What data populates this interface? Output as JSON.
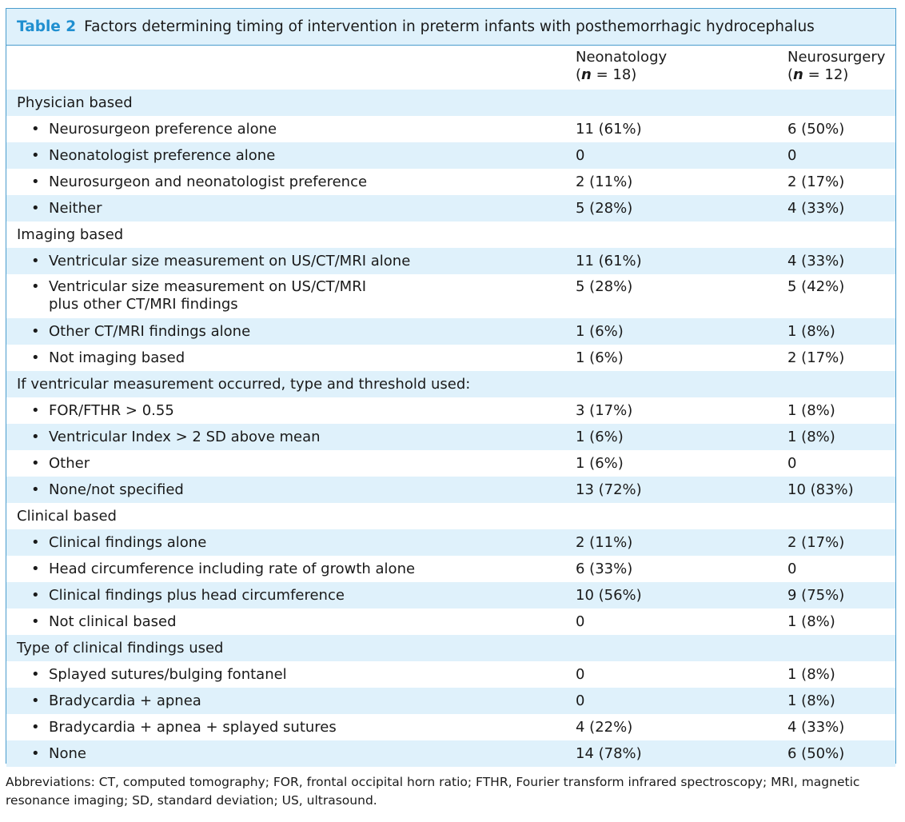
{
  "table": {
    "label": "Table 2",
    "title": "Factors determining timing of intervention in preterm infants with posthemorrhagic hydrocephalus",
    "columns": [
      {
        "name": "Neonatology",
        "n_symbol": "n",
        "n_value": "18"
      },
      {
        "name": "Neurosurgery",
        "n_symbol": "n",
        "n_value": "12"
      }
    ],
    "rows": [
      {
        "type": "section",
        "label": "Physician based",
        "shaded": true
      },
      {
        "type": "item",
        "label": "Neurosurgeon preference alone",
        "v1": "11 (61%)",
        "v2": "6 (50%)",
        "shaded": false
      },
      {
        "type": "item",
        "label": "Neonatologist preference alone",
        "v1": "0",
        "v2": "0",
        "shaded": true
      },
      {
        "type": "item",
        "label": "Neurosurgeon and neonatologist preference",
        "v1": "2 (11%)",
        "v2": "2 (17%)",
        "shaded": false
      },
      {
        "type": "item",
        "label": "Neither",
        "v1": "5 (28%)",
        "v2": "4 (33%)",
        "shaded": true
      },
      {
        "type": "section",
        "label": "Imaging based",
        "shaded": false
      },
      {
        "type": "item",
        "label": "Ventricular size measurement on US/CT/MRI alone",
        "v1": "11 (61%)",
        "v2": "4 (33%)",
        "shaded": true
      },
      {
        "type": "item",
        "label": "Ventricular size measurement on US/CT/MRI",
        "label2": "plus other CT/MRI findings",
        "v1": "5 (28%)",
        "v2": "5 (42%)",
        "shaded": false
      },
      {
        "type": "item",
        "label": "Other CT/MRI findings alone",
        "v1": "1 (6%)",
        "v2": "1 (8%)",
        "shaded": true
      },
      {
        "type": "item",
        "label": "Not imaging based",
        "v1": "1 (6%)",
        "v2": "2 (17%)",
        "shaded": false
      },
      {
        "type": "section",
        "label": "If ventricular measurement occurred, type and threshold used:",
        "shaded": true
      },
      {
        "type": "item",
        "label": "FOR/FTHR > 0.55",
        "v1": "3 (17%)",
        "v2": "1 (8%)",
        "shaded": false
      },
      {
        "type": "item",
        "label": "Ventricular Index > 2 SD above mean",
        "v1": "1 (6%)",
        "v2": "1 (8%)",
        "shaded": true
      },
      {
        "type": "item",
        "label": "Other",
        "v1": "1 (6%)",
        "v2": "0",
        "shaded": false
      },
      {
        "type": "item",
        "label": "None/not specified",
        "v1": "13 (72%)",
        "v2": "10 (83%)",
        "shaded": true
      },
      {
        "type": "section",
        "label": "Clinical based",
        "shaded": false
      },
      {
        "type": "item",
        "label": "Clinical findings alone",
        "v1": "2 (11%)",
        "v2": "2 (17%)",
        "shaded": true
      },
      {
        "type": "item",
        "label": "Head circumference including rate of growth alone",
        "v1": "6 (33%)",
        "v2": "0",
        "shaded": false
      },
      {
        "type": "item",
        "label": "Clinical findings plus head circumference",
        "v1": "10 (56%)",
        "v2": "9 (75%)",
        "shaded": true
      },
      {
        "type": "item",
        "label": "Not clinical based",
        "v1": "0",
        "v2": "1 (8%)",
        "shaded": false
      },
      {
        "type": "section",
        "label": "Type of clinical findings used",
        "shaded": true
      },
      {
        "type": "item",
        "label": "Splayed sutures/bulging fontanel",
        "v1": "0",
        "v2": "1 (8%)",
        "shaded": false
      },
      {
        "type": "item",
        "label": "Bradycardia + apnea",
        "v1": "0",
        "v2": "1 (8%)",
        "shaded": true
      },
      {
        "type": "item",
        "label": "Bradycardia + apnea + splayed sutures",
        "v1": "4 (22%)",
        "v2": "4 (33%)",
        "shaded": false
      },
      {
        "type": "item",
        "label": "None",
        "v1": "14 (78%)",
        "v2": "6 (50%)",
        "shaded": true
      }
    ]
  },
  "bullet_symbol": "•",
  "footnote": "Abbreviations: CT, computed tomography; FOR, frontal occipital horn ratio; FTHR, Fourier transform infrared spectroscopy; MRI, magnetic resonance imaging; SD, standard deviation; US, ultrasound."
}
